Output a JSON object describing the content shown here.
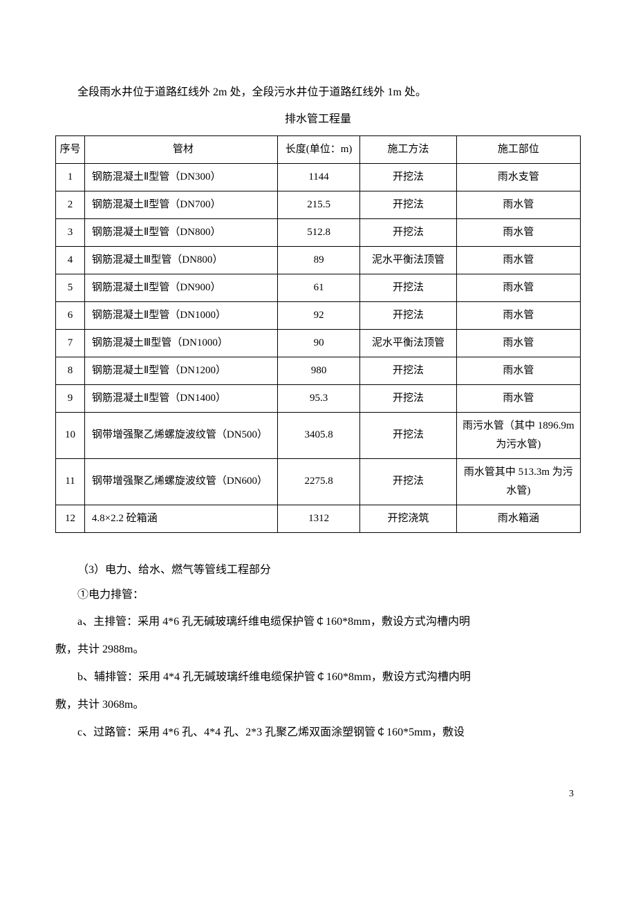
{
  "intro": "全段雨水井位于道路红线外 2m 处，全段污水井位于道路红线外 1m 处。",
  "table_title": "排水管工程量",
  "table": {
    "headers": {
      "seq": "序号",
      "material": "管材",
      "length": "长度(单位：m)",
      "method": "施工方法",
      "location": "施工部位"
    },
    "rows": [
      {
        "seq": "1",
        "material": "钢筋混凝土Ⅱ型管（DN300）",
        "length": "1144",
        "method": "开挖法",
        "location": "雨水支管"
      },
      {
        "seq": "2",
        "material": "钢筋混凝土Ⅱ型管（DN700）",
        "length": "215.5",
        "method": "开挖法",
        "location": "雨水管"
      },
      {
        "seq": "3",
        "material": "钢筋混凝土Ⅱ型管（DN800）",
        "length": "512.8",
        "method": "开挖法",
        "location": "雨水管"
      },
      {
        "seq": "4",
        "material": "钢筋混凝土Ⅲ型管（DN800）",
        "length": "89",
        "method": "泥水平衡法顶管",
        "location": "雨水管"
      },
      {
        "seq": "5",
        "material": "钢筋混凝土Ⅱ型管（DN900）",
        "length": "61",
        "method": "开挖法",
        "location": "雨水管"
      },
      {
        "seq": "6",
        "material": "钢筋混凝土Ⅱ型管（DN1000）",
        "length": "92",
        "method": "开挖法",
        "location": "雨水管"
      },
      {
        "seq": "7",
        "material": "钢筋混凝土Ⅲ型管（DN1000）",
        "length": "90",
        "method": "泥水平衡法顶管",
        "location": "雨水管"
      },
      {
        "seq": "8",
        "material": "钢筋混凝土Ⅱ型管（DN1200）",
        "length": "980",
        "method": "开挖法",
        "location": "雨水管"
      },
      {
        "seq": "9",
        "material": "钢筋混凝土Ⅱ型管（DN1400）",
        "length": "95.3",
        "method": "开挖法",
        "location": "雨水管"
      },
      {
        "seq": "10",
        "material": "钢带增强聚乙烯螺旋波纹管（DN500）",
        "length": "3405.8",
        "method": "开挖法",
        "location": "雨污水管（其中 1896.9m 为污水管)"
      },
      {
        "seq": "11",
        "material": "钢带增强聚乙烯螺旋波纹管（DN600）",
        "length": "2275.8",
        "method": "开挖法",
        "location": "雨水管其中 513.3m 为污水管)"
      },
      {
        "seq": "12",
        "material": "4.8×2.2 砼箱涵",
        "length": "1312",
        "method": "开挖浇筑",
        "location": "雨水箱涵"
      }
    ]
  },
  "section3_title": "（3）电力、给水、燃气等管线工程部分",
  "sub1_title": "①电力排管：",
  "para_a1": "a、主排管：采用 4*6 孔无碱玻璃纤维电缆保护管￠160*8mm，敷设方式沟槽内明",
  "para_a2": "敷，共计 2988m。",
  "para_b1": "b、辅排管：采用 4*4 孔无碱玻璃纤维电缆保护管￠160*8mm，敷设方式沟槽内明",
  "para_b2": "敷，共计 3068m。",
  "para_c": "c、过路管：采用 4*6 孔、4*4 孔、2*3 孔聚乙烯双面涂塑钢管￠160*5mm，敷设",
  "page_number": "3"
}
